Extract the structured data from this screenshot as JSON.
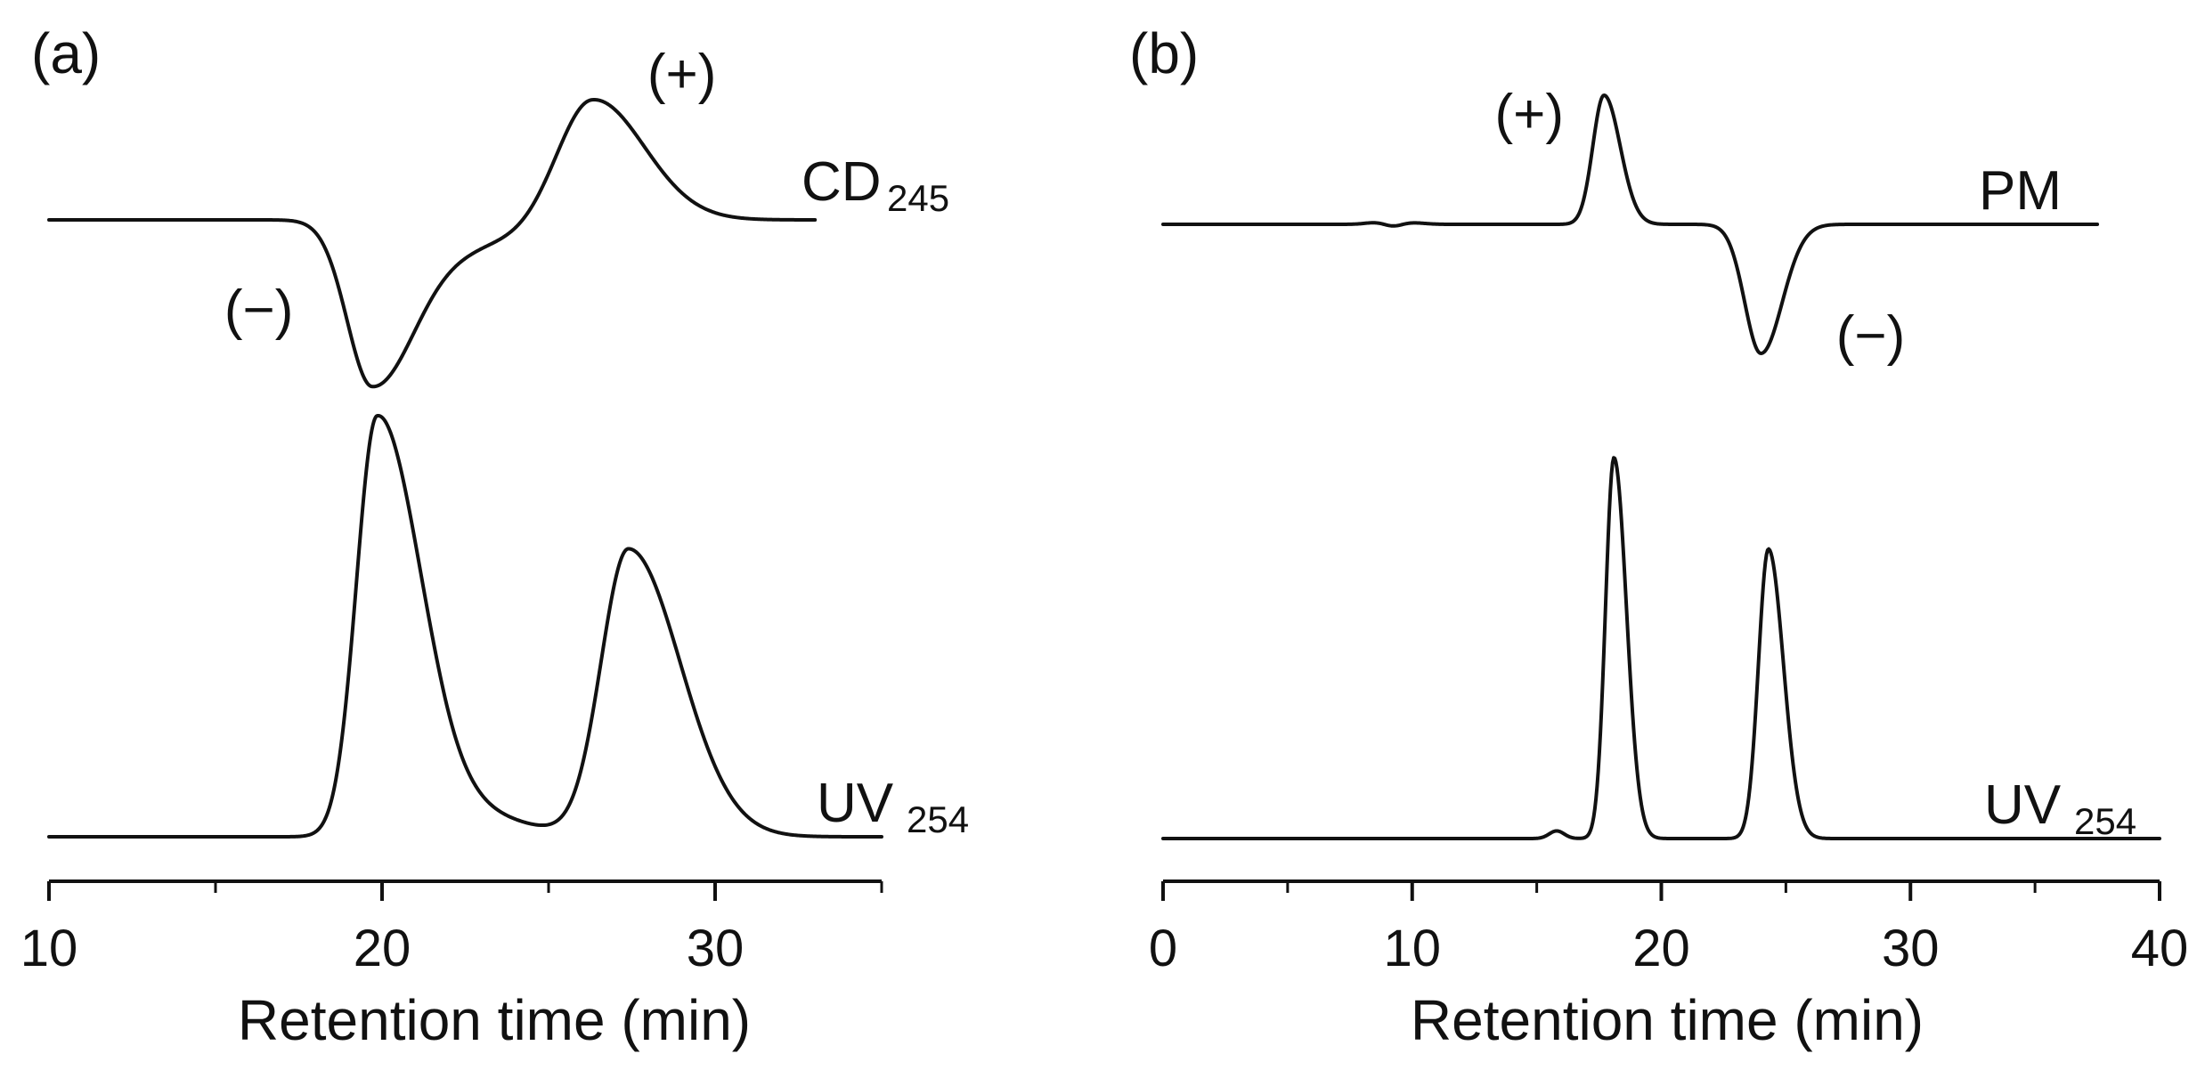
{
  "chart_data": [
    {
      "panel_label": "(a)",
      "type": "line",
      "xlabel": "Retention time (min)",
      "xlim": [
        10,
        35
      ],
      "xticks": [
        10,
        20,
        30
      ],
      "minor_tick_step": 5,
      "traces": [
        {
          "name": "CD",
          "subscript": "245",
          "kind": "signed",
          "x_start": 10,
          "x_end": 33,
          "peaks": [
            {
              "center": 19.7,
              "height": -1.0,
              "width_left": 0.75,
              "width_right": 1.3
            },
            {
              "center": 22.8,
              "height": -0.14,
              "width_left": 1.4,
              "width_right": 1.8
            },
            {
              "center": 26.3,
              "height": 0.75,
              "width_left": 1.05,
              "width_right": 1.55
            }
          ],
          "peak_labels": [
            {
              "text": "(−)",
              "x": 16.3,
              "y": -0.55
            },
            {
              "text": "(+)",
              "x": 29.0,
              "y": 0.88
            }
          ]
        },
        {
          "name": "UV",
          "subscript": "254",
          "kind": "absorbance",
          "x_start": 10,
          "x_end": 35,
          "peaks": [
            {
              "center": 19.85,
              "height": 1.0,
              "width_left": 0.62,
              "width_right": 1.25
            },
            {
              "center": 21.8,
              "height": 0.07,
              "width_left": 1.0,
              "width_right": 2.0
            },
            {
              "center": 27.4,
              "height": 0.69,
              "width_left": 0.82,
              "width_right": 1.55
            }
          ]
        }
      ]
    },
    {
      "panel_label": "(b)",
      "type": "line",
      "xlabel": "Retention time (min)",
      "xlim": [
        0,
        40
      ],
      "xticks": [
        0,
        10,
        20,
        30,
        40
      ],
      "minor_tick_step": 5,
      "traces": [
        {
          "name": "PM",
          "subscript": "",
          "kind": "signed",
          "x_start": 0,
          "x_end": 37.5,
          "peaks": [
            {
              "center": 8.6,
              "height": 0.015,
              "width_left": 0.45,
              "width_right": 0.45
            },
            {
              "center": 9.2,
              "height": -0.02,
              "width_left": 0.35,
              "width_right": 0.35
            },
            {
              "center": 10.0,
              "height": 0.012,
              "width_left": 0.4,
              "width_right": 0.5
            },
            {
              "center": 17.7,
              "height": 1.0,
              "width_left": 0.45,
              "width_right": 0.65
            },
            {
              "center": 24.0,
              "height": -1.0,
              "width_left": 0.65,
              "width_right": 0.85
            }
          ],
          "peak_labels": [
            {
              "text": "(+)",
              "x": 14.7,
              "y": 0.85
            },
            {
              "text": "(−)",
              "x": 28.4,
              "y": -0.87
            }
          ]
        },
        {
          "name": "UV",
          "subscript": "254",
          "kind": "absorbance",
          "x_start": 0,
          "x_end": 40,
          "peaks": [
            {
              "center": 15.8,
              "height": 0.02,
              "width_left": 0.3,
              "width_right": 0.3
            },
            {
              "center": 18.1,
              "height": 1.0,
              "width_left": 0.34,
              "width_right": 0.5
            },
            {
              "center": 24.3,
              "height": 0.76,
              "width_left": 0.4,
              "width_right": 0.6
            }
          ]
        }
      ]
    }
  ]
}
